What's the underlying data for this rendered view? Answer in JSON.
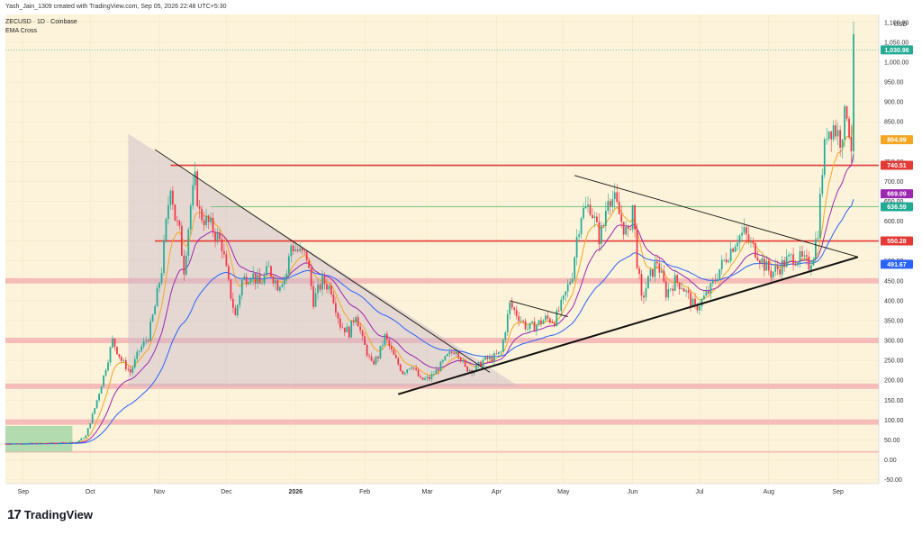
{
  "header": {
    "attribution": "Yash_Jain_1309 created with TradingView.com, Sep 05, 2026 22:48 UTC+5:30",
    "symbol_line": "ZECUSD · 1D · Coinbase",
    "indicator": "EMA Cross"
  },
  "footer": {
    "brand": "TradingView",
    "brand_mark": "17"
  },
  "colors": {
    "background": "#fdf3da",
    "up": "#22ab94",
    "down": "#f23645",
    "ema_fast": "#f5a623",
    "ema_mid": "#9c27b0",
    "ema_slow": "#2962ff",
    "resistance": "#e53935",
    "support_zone": "#f4b6b6",
    "triangle_fill": "#c8b7c8",
    "accumulation": "#a5d6a7"
  },
  "chart_data": {
    "type": "candlestick",
    "title": "ZECUSD · 1D · Coinbase",
    "currency": "USD",
    "ylim": [
      -60,
      1120
    ],
    "yticks": [
      -50,
      0,
      50,
      100,
      150,
      200,
      250,
      300,
      350,
      400,
      450,
      500,
      550,
      600,
      650,
      700,
      750,
      800,
      850,
      900,
      950,
      1000,
      1050,
      1100
    ],
    "ytick_labels": [
      "-50.00",
      "0.00",
      "50.00",
      "100.00",
      "150.00",
      "200.00",
      "250.00",
      "300.00",
      "350.00",
      "400.00",
      "450.00",
      "500.00",
      "550.00",
      "600.00",
      "650.00",
      "700.00",
      "750.00",
      "800.00",
      "850.00",
      "900.00",
      "950.00",
      "1,000.00",
      "1,050.00",
      "1,100.00"
    ],
    "xlim_day": [
      0,
      380
    ],
    "x_ticks": [
      {
        "label": "Sep",
        "day": 8
      },
      {
        "label": "Oct",
        "day": 38
      },
      {
        "label": "Nov",
        "day": 69
      },
      {
        "label": "Dec",
        "day": 99
      },
      {
        "label": "2026",
        "day": 130
      },
      {
        "label": "Feb",
        "day": 161
      },
      {
        "label": "Mar",
        "day": 189
      },
      {
        "label": "Apr",
        "day": 220
      },
      {
        "label": "May",
        "day": 250
      },
      {
        "label": "Jun",
        "day": 281
      },
      {
        "label": "Jul",
        "day": 311
      },
      {
        "label": "Aug",
        "day": 342
      },
      {
        "label": "Sep",
        "day": 373
      }
    ],
    "anchors": [
      [
        0,
        40
      ],
      [
        25,
        42
      ],
      [
        32,
        45
      ],
      [
        36,
        60
      ],
      [
        40,
        130
      ],
      [
        44,
        210
      ],
      [
        48,
        300
      ],
      [
        52,
        250
      ],
      [
        56,
        220
      ],
      [
        60,
        275
      ],
      [
        64,
        310
      ],
      [
        67,
        385
      ],
      [
        70,
        480
      ],
      [
        72,
        590
      ],
      [
        74,
        700
      ],
      [
        76,
        610
      ],
      [
        78,
        570
      ],
      [
        80,
        480
      ],
      [
        83,
        640
      ],
      [
        85,
        700
      ],
      [
        87,
        620
      ],
      [
        90,
        600
      ],
      [
        93,
        580
      ],
      [
        97,
        540
      ],
      [
        100,
        440
      ],
      [
        103,
        360
      ],
      [
        106,
        450
      ],
      [
        110,
        470
      ],
      [
        114,
        440
      ],
      [
        118,
        480
      ],
      [
        122,
        440
      ],
      [
        126,
        470
      ],
      [
        128,
        540
      ],
      [
        132,
        520
      ],
      [
        135,
        510
      ],
      [
        138,
        400
      ],
      [
        142,
        450
      ],
      [
        146,
        430
      ],
      [
        150,
        340
      ],
      [
        154,
        320
      ],
      [
        157,
        370
      ],
      [
        160,
        300
      ],
      [
        164,
        240
      ],
      [
        167,
        260
      ],
      [
        170,
        310
      ],
      [
        174,
        260
      ],
      [
        178,
        220
      ],
      [
        182,
        240
      ],
      [
        186,
        200
      ],
      [
        190,
        205
      ],
      [
        194,
        230
      ],
      [
        198,
        260
      ],
      [
        202,
        280
      ],
      [
        206,
        230
      ],
      [
        210,
        225
      ],
      [
        214,
        250
      ],
      [
        218,
        255
      ],
      [
        222,
        270
      ],
      [
        226,
        390
      ],
      [
        230,
        360
      ],
      [
        234,
        330
      ],
      [
        238,
        340
      ],
      [
        242,
        355
      ],
      [
        246,
        350
      ],
      [
        250,
        400
      ],
      [
        254,
        470
      ],
      [
        256,
        560
      ],
      [
        258,
        620
      ],
      [
        262,
        640
      ],
      [
        266,
        560
      ],
      [
        268,
        590
      ],
      [
        270,
        670
      ],
      [
        273,
        650
      ],
      [
        276,
        600
      ],
      [
        279,
        560
      ],
      [
        281,
        640
      ],
      [
        283,
        500
      ],
      [
        285,
        400
      ],
      [
        288,
        450
      ],
      [
        292,
        500
      ],
      [
        296,
        420
      ],
      [
        300,
        450
      ],
      [
        303,
        440
      ],
      [
        306,
        410
      ],
      [
        309,
        380
      ],
      [
        312,
        400
      ],
      [
        316,
        430
      ],
      [
        320,
        480
      ],
      [
        324,
        520
      ],
      [
        328,
        560
      ],
      [
        331,
        570
      ],
      [
        334,
        540
      ],
      [
        337,
        520
      ],
      [
        340,
        490
      ],
      [
        343,
        470
      ],
      [
        346,
        480
      ],
      [
        350,
        500
      ],
      [
        353,
        510
      ],
      [
        356,
        505
      ],
      [
        360,
        490
      ],
      [
        362,
        520
      ],
      [
        364,
        580
      ],
      [
        366,
        730
      ],
      [
        368,
        830
      ],
      [
        371,
        840
      ],
      [
        374,
        810
      ],
      [
        377,
        880
      ],
      [
        379,
        790
      ],
      [
        380,
        1030
      ]
    ],
    "last_price": 1030.96,
    "price_labels": [
      {
        "value": 1030.96,
        "text": "1,030.96",
        "color": "#22ab94"
      },
      {
        "value": 804.99,
        "text": "804.99",
        "color": "#f5a623"
      },
      {
        "value": 740.51,
        "text": "740.51",
        "color": "#e53935"
      },
      {
        "value": 669.09,
        "text": "669.09",
        "color": "#9c27b0"
      },
      {
        "value": 636.59,
        "text": "636.59",
        "color": "#22ab94"
      },
      {
        "value": 550.28,
        "text": "550.28",
        "color": "#e53935"
      },
      {
        "value": 491.67,
        "text": "491.67",
        "color": "#2962ff"
      }
    ],
    "horizontal_levels": [
      {
        "value": 740.51,
        "style": "resistance",
        "from_day": 74
      },
      {
        "value": 636.59,
        "style": "thin",
        "from_day": 92
      },
      {
        "value": 550.28,
        "style": "resistance",
        "from_day": 67
      }
    ],
    "zones": [
      {
        "value": 450,
        "style": "support_zone"
      },
      {
        "value": 300,
        "style": "support_zone"
      },
      {
        "value": 185,
        "style": "support_zone"
      },
      {
        "value": 95,
        "style": "support_zone"
      },
      {
        "value": 20,
        "style": "thin_zone"
      }
    ],
    "accumulation_box": {
      "day_from": 0,
      "day_to": 30,
      "low": 20,
      "high": 85
    },
    "triangle_shade": [
      [
        55,
        820
      ],
      [
        230,
        185
      ],
      [
        55,
        185
      ]
    ],
    "trendlines": [
      {
        "from": [
          67,
          780
        ],
        "to": [
          217,
          220
        ],
        "weight": "thin"
      },
      {
        "from": [
          176,
          165
        ],
        "to": [
          382,
          510
        ],
        "weight": "bold"
      },
      {
        "from": [
          255,
          715
        ],
        "to": [
          382,
          510
        ],
        "weight": "thin"
      },
      {
        "from": [
          226,
          400
        ],
        "to": [
          252,
          360
        ],
        "weight": "thin"
      }
    ]
  }
}
